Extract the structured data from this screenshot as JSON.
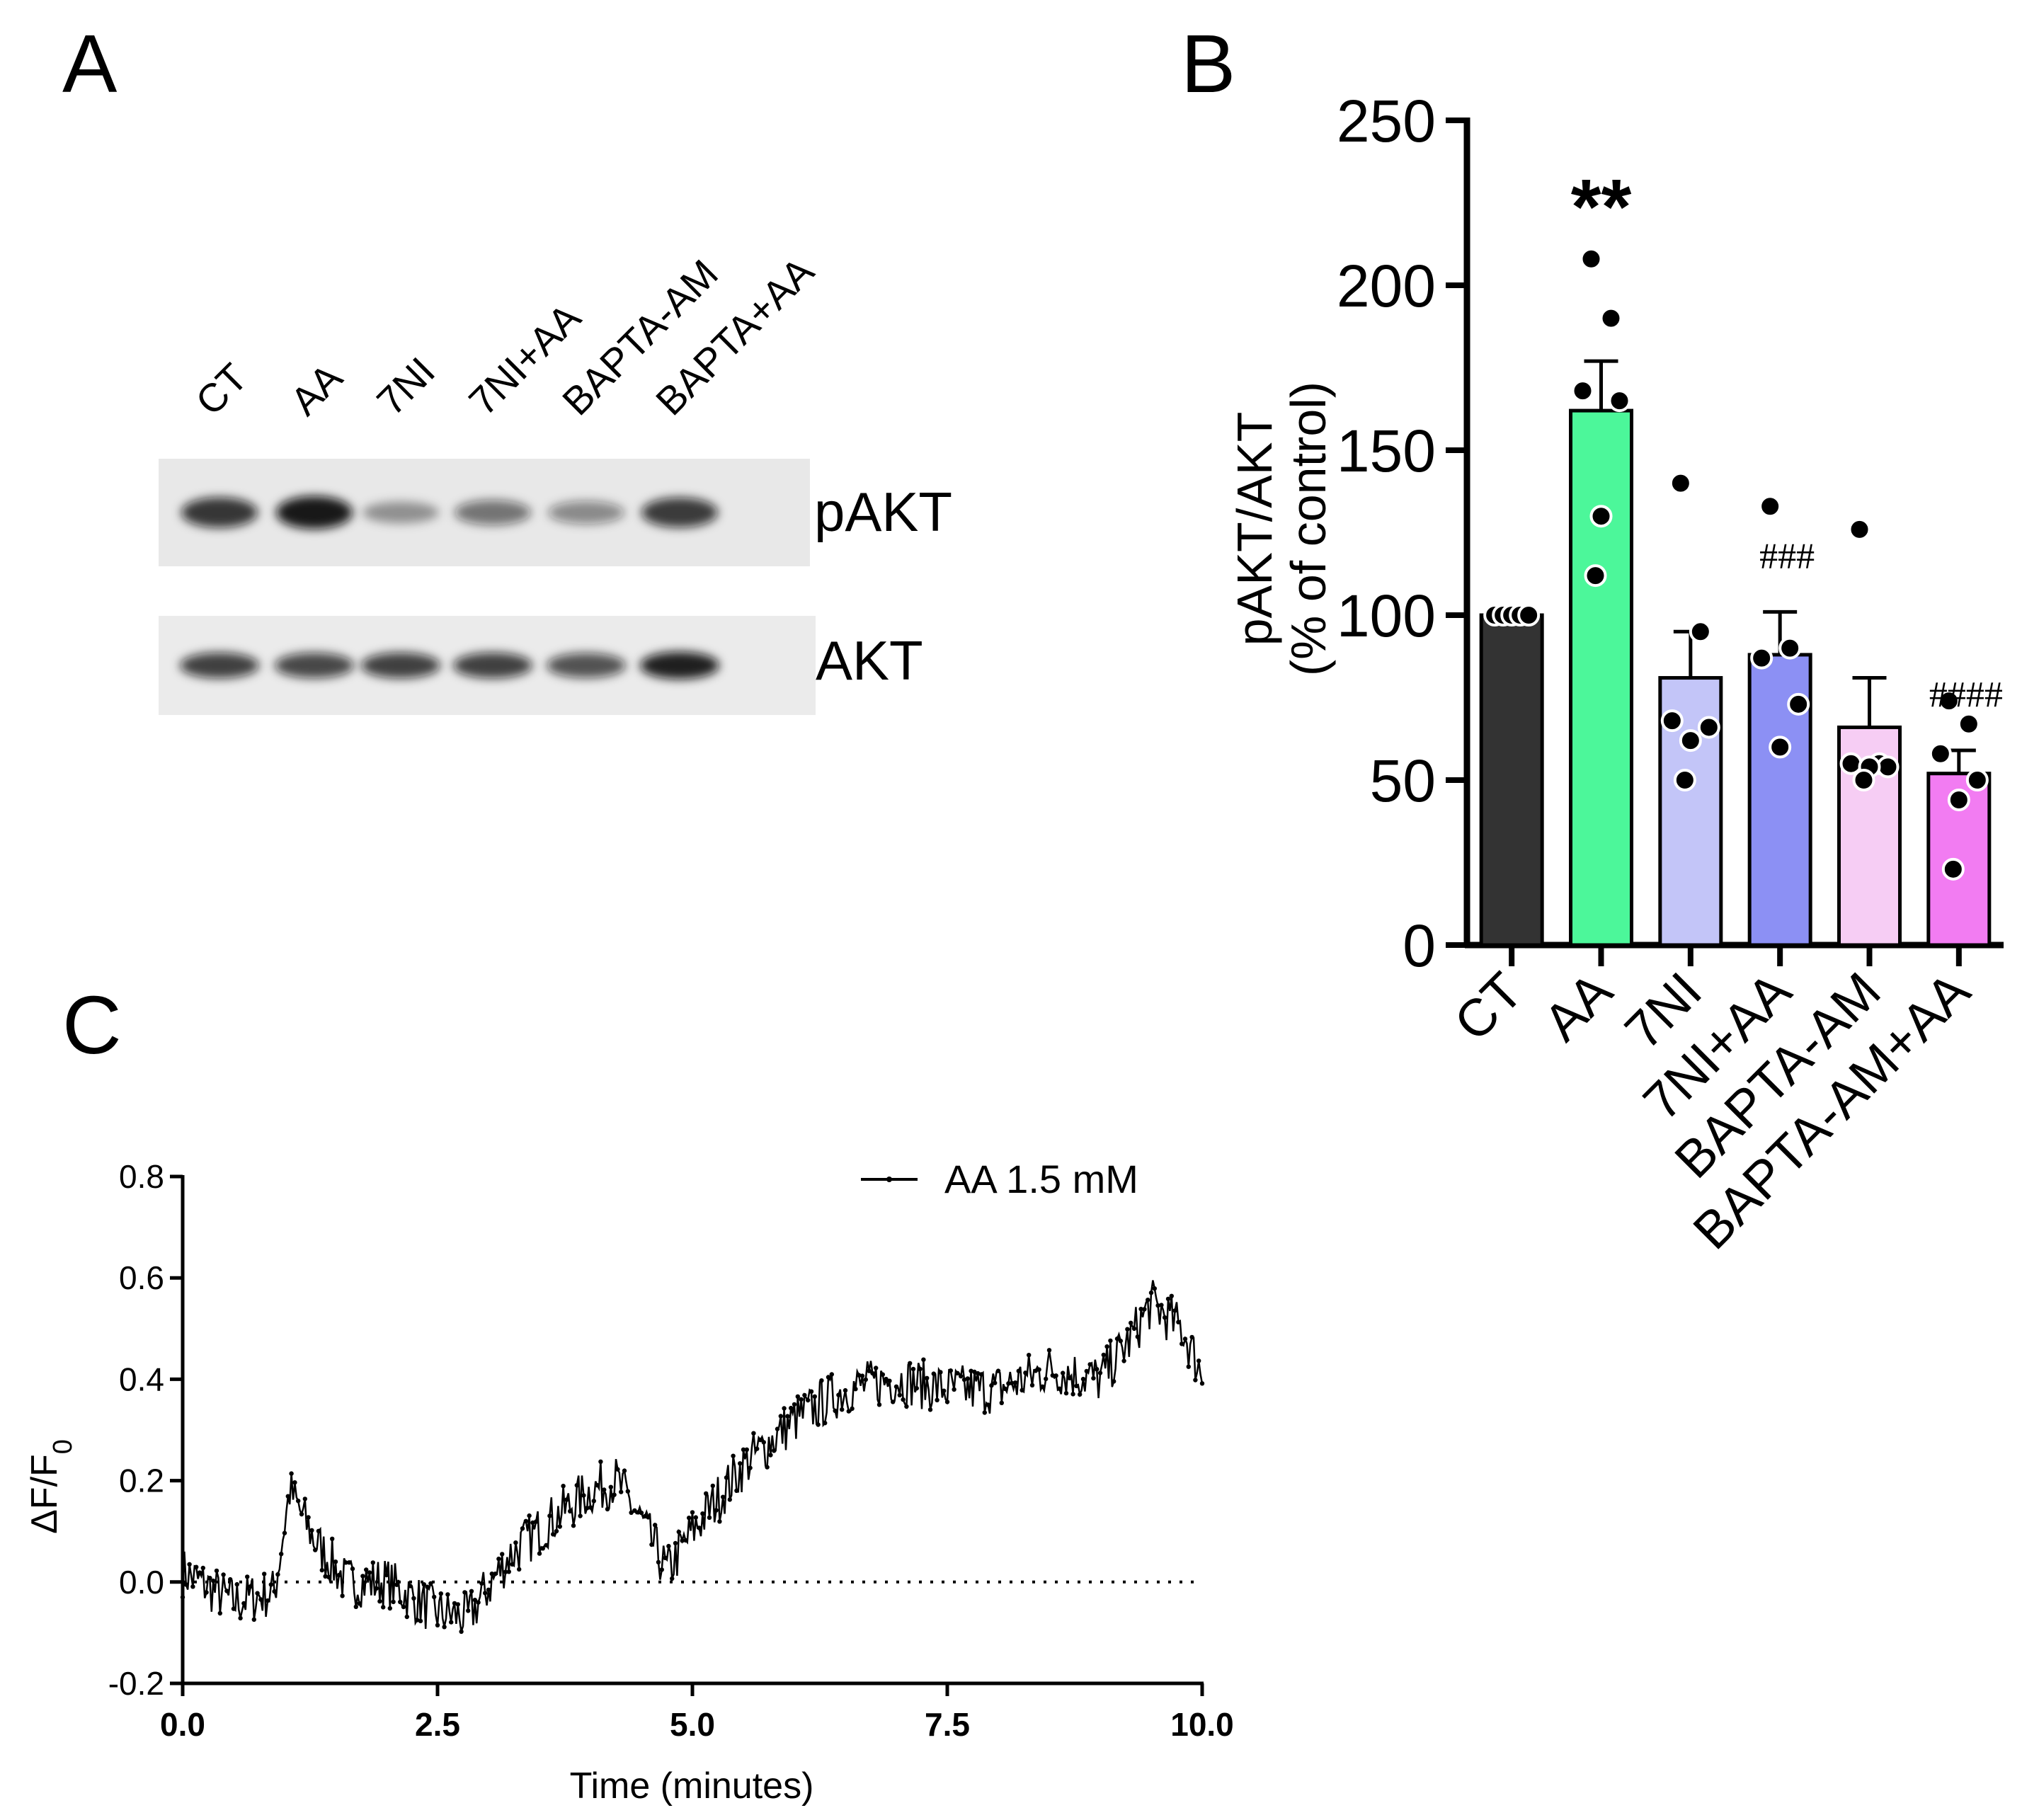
{
  "panels": {
    "a": "A",
    "b": "B",
    "c": "C"
  },
  "blot": {
    "lanes": [
      "CT",
      "AA",
      "7NI",
      "7NI+AA",
      "BAPTA-AM",
      "BAPTA+AA"
    ],
    "proteins": [
      "pAKT",
      "AKT"
    ],
    "pakt_intensity": [
      0.82,
      0.95,
      0.38,
      0.55,
      0.45,
      0.8
    ],
    "akt_intensity": [
      0.78,
      0.75,
      0.78,
      0.78,
      0.7,
      0.92
    ]
  },
  "chart_data": [
    {
      "type": "bar",
      "panel": "B",
      "ylabel_line1": "pAKT/AKT",
      "ylabel_line2": "(% of control)",
      "categories": [
        "CT",
        "AA",
        "7NI",
        "7NI+AA",
        "BAPTA-AM",
        "BAPTA-AM+AA"
      ],
      "values": [
        100,
        162,
        81,
        88,
        66,
        52
      ],
      "sem": [
        0,
        15,
        14,
        13,
        15,
        7
      ],
      "points": [
        [
          100,
          100,
          100,
          100,
          100
        ],
        [
          208,
          190,
          168,
          165,
          130,
          112
        ],
        [
          140,
          95,
          68,
          66,
          62,
          50
        ],
        [
          133,
          90,
          87,
          73,
          60
        ],
        [
          126,
          55,
          55,
          54,
          54,
          50
        ],
        [
          74,
          67,
          58,
          50,
          44,
          23
        ]
      ],
      "colors": [
        "#333333",
        "#4cf79a",
        "#c3c5f8",
        "#8c90f4",
        "#f6cdf4",
        "#f27cf2"
      ],
      "ylim": [
        0,
        250
      ],
      "yticks": [
        "0",
        "50",
        "100",
        "150",
        "200",
        "250"
      ],
      "significance": [
        "",
        "**",
        "",
        "###",
        "",
        "####"
      ]
    },
    {
      "type": "line",
      "panel": "C",
      "series_name": "AA 1.5 mM",
      "xlabel": "Time (minutes)",
      "ylabel": "ΔF/F",
      "ylabel_sub": "0",
      "xlim": [
        0,
        10
      ],
      "ylim": [
        -0.2,
        0.8
      ],
      "xticks": [
        "0.0",
        "2.5",
        "5.0",
        "7.5",
        "10.0"
      ],
      "yticks": [
        "-0.2",
        "0.0",
        "0.2",
        "0.4",
        "0.6",
        "0.8"
      ],
      "trend": [
        [
          0,
          0.02
        ],
        [
          0.5,
          -0.04
        ],
        [
          0.9,
          -0.02
        ],
        [
          1.05,
          0.18
        ],
        [
          1.3,
          0.08
        ],
        [
          1.6,
          0.0
        ],
        [
          2.0,
          0.0
        ],
        [
          2.5,
          -0.06
        ],
        [
          2.8,
          -0.07
        ],
        [
          3.2,
          0.05
        ],
        [
          3.6,
          0.12
        ],
        [
          4.0,
          0.18
        ],
        [
          4.25,
          0.2
        ],
        [
          4.5,
          0.12
        ],
        [
          4.75,
          0.02
        ],
        [
          5.0,
          0.1
        ],
        [
          5.5,
          0.23
        ],
        [
          6.0,
          0.32
        ],
        [
          6.5,
          0.38
        ],
        [
          7.0,
          0.4
        ],
        [
          7.5,
          0.38
        ],
        [
          8.0,
          0.38
        ],
        [
          8.5,
          0.42
        ],
        [
          9.0,
          0.4
        ],
        [
          9.3,
          0.48
        ],
        [
          9.5,
          0.55
        ],
        [
          9.8,
          0.5
        ],
        [
          10.0,
          0.41
        ]
      ],
      "noise_amplitude": 0.05,
      "n_points": 600,
      "baseline": 0
    }
  ]
}
